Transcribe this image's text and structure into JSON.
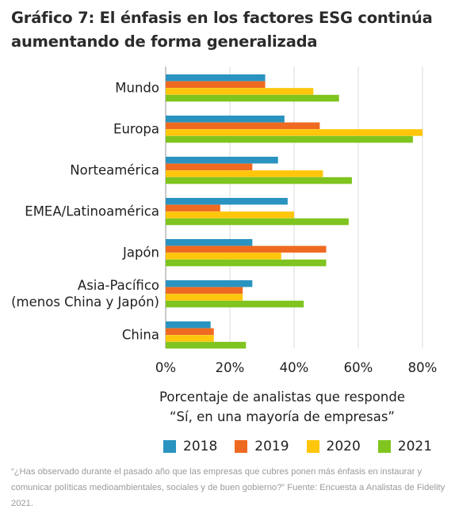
{
  "title": "Gráfico 7: El énfasis en los factores ESG continúa aumentando de forma generalizada",
  "xlabel_line1": "Porcentaje de analistas que responde",
  "xlabel_line2": "“Sí, en una mayoría de empresas”",
  "footnote": "“¿Has observado durante el pasado año que las empresas que cubres ponen más énfasis en instaurar y comunicar políticas medioambientales, sociales y de buen gobierno?” Fuente: Encuesta a Analistas de Fidelity 2021.",
  "chart_data": {
    "type": "bar",
    "orientation": "horizontal",
    "categories": [
      [
        "Mundo"
      ],
      [
        "Europa"
      ],
      [
        "Norteamérica"
      ],
      [
        "EMEA/Latinoamérica"
      ],
      [
        "Japón"
      ],
      [
        "Asia-Pacífico",
        "(menos China y Japón)"
      ],
      [
        "China"
      ]
    ],
    "series": [
      {
        "name": "2018",
        "color": "#2a93bf",
        "values": [
          31,
          37,
          35,
          38,
          27,
          27,
          14
        ]
      },
      {
        "name": "2019",
        "color": "#ef6a21",
        "values": [
          31,
          48,
          27,
          17,
          50,
          24,
          15
        ]
      },
      {
        "name": "2020",
        "color": "#ffc60b",
        "values": [
          46,
          80,
          49,
          40,
          36,
          24,
          15
        ]
      },
      {
        "name": "2021",
        "color": "#7fc41f",
        "values": [
          54,
          77,
          58,
          57,
          50,
          43,
          25
        ]
      }
    ],
    "xlim": [
      0,
      80
    ],
    "xticks": [
      "0%",
      "20%",
      "40%",
      "60%",
      "80%"
    ],
    "grid": true,
    "legend_position": "bottom"
  }
}
